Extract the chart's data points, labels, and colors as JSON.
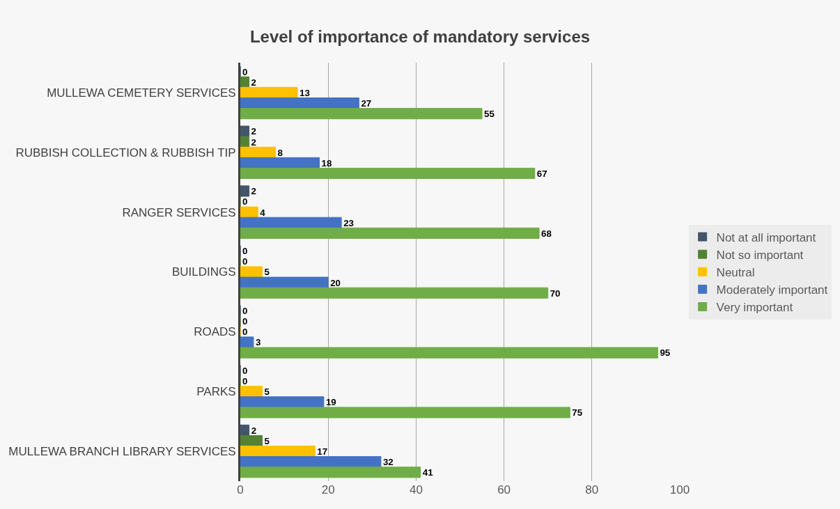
{
  "chart_data": {
    "type": "bar",
    "orientation": "horizontal",
    "title": "Level of importance of mandatory services",
    "categories": [
      "MULLEWA CEMETERY SERVICES",
      "RUBBISH COLLECTION & RUBBISH TIP",
      "RANGER SERVICES",
      "BUILDINGS",
      "ROADS",
      "PARKS",
      "MULLEWA BRANCH LIBRARY SERVICES"
    ],
    "series": [
      {
        "name": "Not at all important",
        "color": "#44546a",
        "values": [
          0,
          2,
          2,
          0,
          0,
          0,
          2
        ]
      },
      {
        "name": "Not so important",
        "color": "#548235",
        "values": [
          2,
          2,
          0,
          0,
          0,
          0,
          5
        ]
      },
      {
        "name": "Neutral",
        "color": "#ffc000",
        "values": [
          13,
          8,
          4,
          5,
          0,
          5,
          17
        ]
      },
      {
        "name": "Moderately important",
        "color": "#4472c4",
        "values": [
          27,
          18,
          23,
          20,
          3,
          19,
          32
        ]
      },
      {
        "name": "Very important",
        "color": "#70ad47",
        "values": [
          55,
          67,
          68,
          70,
          95,
          75,
          41
        ]
      }
    ],
    "xlim": [
      0,
      100
    ],
    "xticks": [
      0,
      20,
      40,
      60,
      80,
      100
    ],
    "grid": "x",
    "legend": "right",
    "data_labels": true
  }
}
